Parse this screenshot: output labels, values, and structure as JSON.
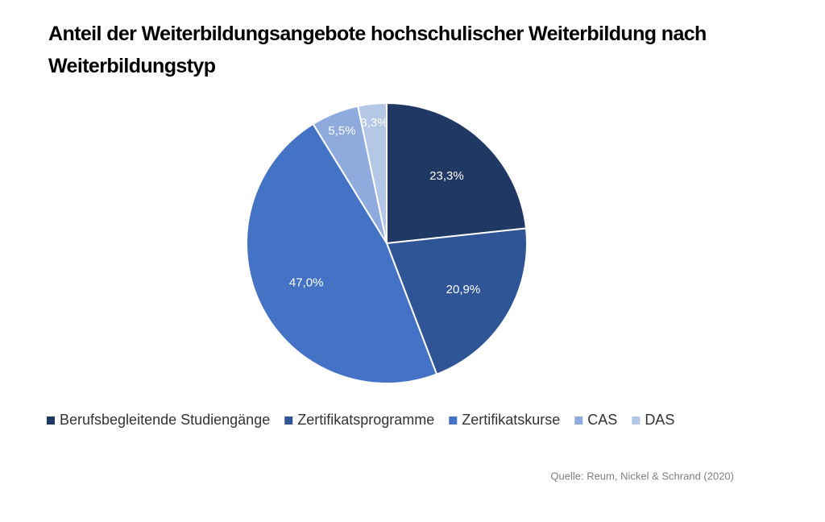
{
  "chart_data": {
    "type": "pie",
    "title": "Anteil der Weiterbildungsangebote hochschulischer Weiterbildung nach Weiterbildungstyp",
    "categories": [
      "Berufsbegleitende Studiengänge",
      "Zertifikatsprogramme",
      "Zertifikatskurse",
      "CAS",
      "DAS"
    ],
    "values": [
      23.3,
      20.9,
      47.0,
      5.5,
      3.3
    ],
    "value_labels": [
      "23,3%",
      "20,9%",
      "47,0%",
      "5,5%",
      "3,3%"
    ],
    "colors": [
      "#203864",
      "#2f5597",
      "#4472c4",
      "#8faadc",
      "#b4c7e7"
    ],
    "legend": "bottom",
    "source": "Quelle: Reum, Nickel & Schrand (2020)"
  }
}
